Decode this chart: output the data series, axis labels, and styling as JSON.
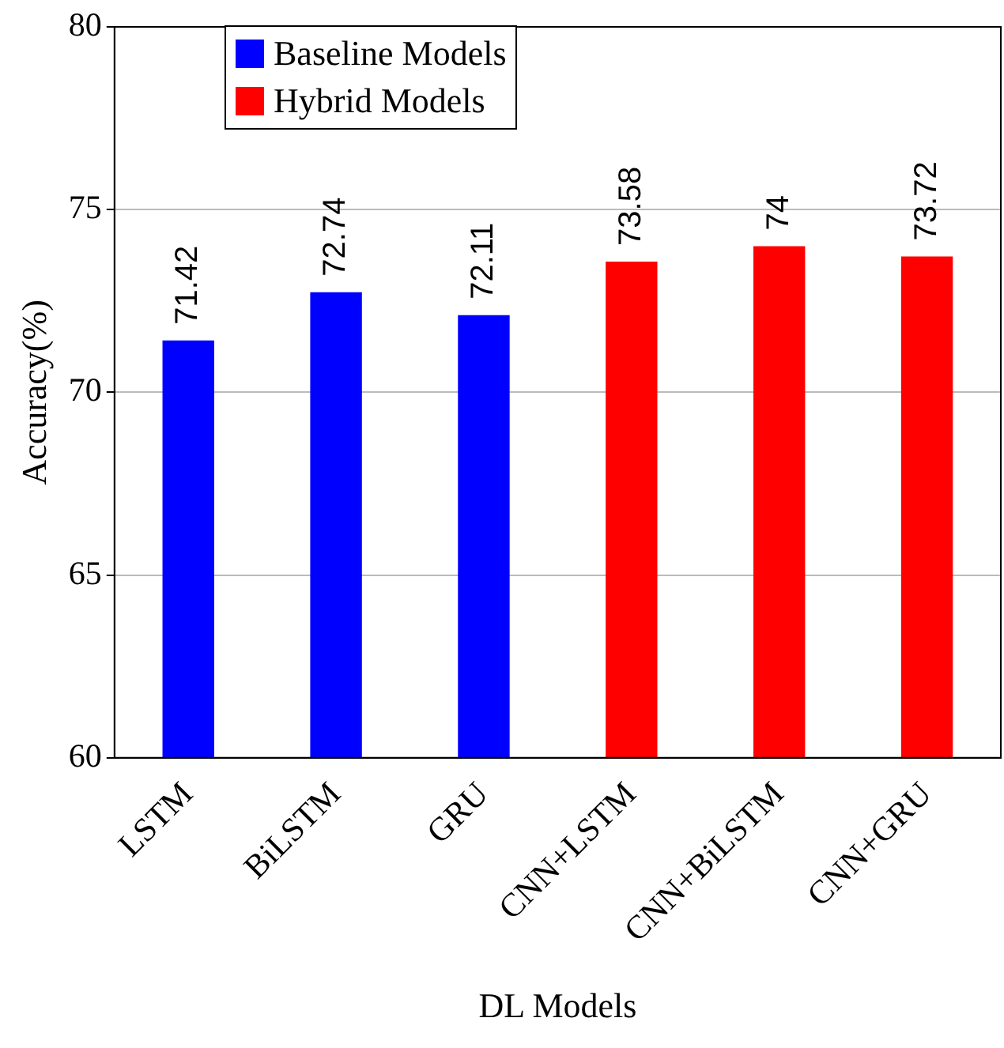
{
  "chart_data": {
    "type": "bar",
    "xlabel": "DL Models",
    "ylabel": "Accuracy(%)",
    "categories": [
      "LSTM",
      "BiLSTM",
      "GRU",
      "CNN+LSTM",
      "CNN+BiLSTM",
      "CNN+GRU"
    ],
    "series": [
      {
        "name": "Baseline Models",
        "color": "#0000ff",
        "values": [
          71.42,
          72.74,
          72.11,
          null,
          null,
          null
        ]
      },
      {
        "name": "Hybrid Models",
        "color": "#ff0000",
        "values": [
          null,
          null,
          null,
          73.58,
          74,
          73.72
        ]
      }
    ],
    "ylim": [
      60,
      80
    ],
    "yticks": [
      60,
      65,
      70,
      75,
      80
    ],
    "grid": "y",
    "legend": "top left",
    "data_labels": true
  }
}
